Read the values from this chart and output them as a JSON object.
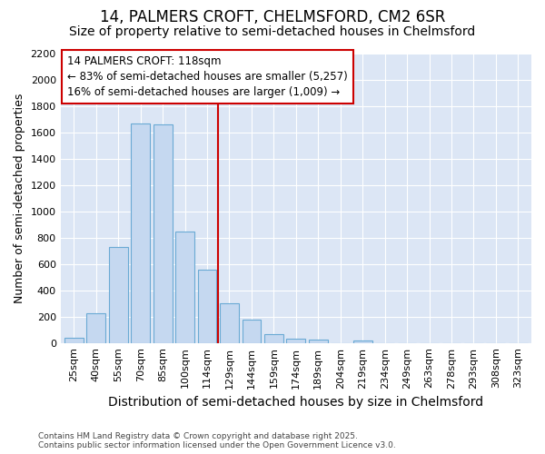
{
  "title": "14, PALMERS CROFT, CHELMSFORD, CM2 6SR",
  "subtitle": "Size of property relative to semi-detached houses in Chelmsford",
  "xlabel": "Distribution of semi-detached houses by size in Chelmsford",
  "ylabel": "Number of semi-detached properties",
  "bin_labels": [
    "25sqm",
    "40sqm",
    "55sqm",
    "70sqm",
    "85sqm",
    "100sqm",
    "114sqm",
    "129sqm",
    "144sqm",
    "159sqm",
    "174sqm",
    "189sqm",
    "204sqm",
    "219sqm",
    "234sqm",
    "249sqm",
    "263sqm",
    "278sqm",
    "293sqm",
    "308sqm",
    "323sqm"
  ],
  "bin_values": [
    40,
    225,
    730,
    1670,
    1660,
    845,
    560,
    300,
    180,
    70,
    35,
    25,
    0,
    20,
    0,
    0,
    0,
    0,
    0,
    0,
    0
  ],
  "bar_color": "#c5d8f0",
  "bar_edge_color": "#6aaad4",
  "vline_x_index": 6.5,
  "vline_color": "#cc0000",
  "annotation_text": "14 PALMERS CROFT: 118sqm\n← 83% of semi-detached houses are smaller (5,257)\n16% of semi-detached houses are larger (1,009) →",
  "annotation_box_color": "#ffffff",
  "annotation_box_edge": "#cc0000",
  "ylim": [
    0,
    2200
  ],
  "yticks": [
    0,
    200,
    400,
    600,
    800,
    1000,
    1200,
    1400,
    1600,
    1800,
    2000,
    2200
  ],
  "background_color": "#dce6f5",
  "grid_color": "#ffffff",
  "footer_text": "Contains HM Land Registry data © Crown copyright and database right 2025.\nContains public sector information licensed under the Open Government Licence v3.0.",
  "title_fontsize": 12,
  "subtitle_fontsize": 10,
  "tick_fontsize": 8,
  "ylabel_fontsize": 9,
  "xlabel_fontsize": 10,
  "annotation_fontsize": 8.5
}
